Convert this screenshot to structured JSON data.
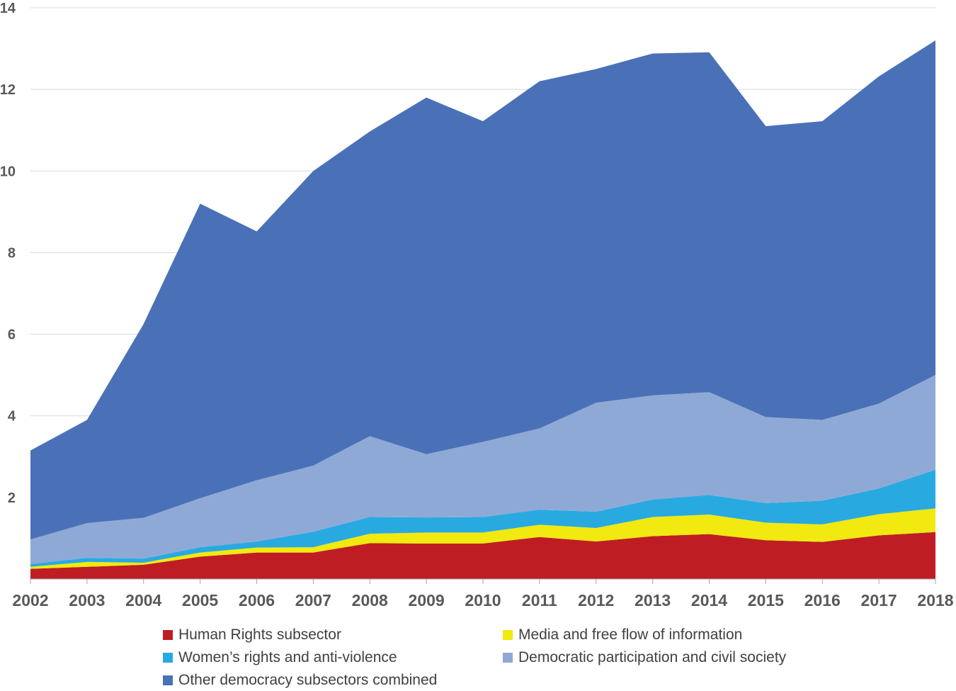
{
  "chart_data": {
    "type": "area",
    "stacked": true,
    "categories": [
      "2002",
      "2003",
      "2004",
      "2005",
      "2006",
      "2007",
      "2008",
      "2009",
      "2010",
      "2011",
      "2012",
      "2013",
      "2014",
      "2015",
      "2016",
      "2017",
      "2018"
    ],
    "ylim": [
      0,
      14
    ],
    "yticks": [
      "14",
      "12",
      "10",
      "8",
      "6",
      "4",
      "2"
    ],
    "grid": true,
    "legend_position": "bottom",
    "series": [
      {
        "name": "Human Rights subsector",
        "color": "#be1e23",
        "values": [
          0.25,
          0.3,
          0.35,
          0.55,
          0.65,
          0.65,
          0.88,
          0.87,
          0.87,
          1.03,
          0.92,
          1.05,
          1.1,
          0.95,
          0.91,
          1.07,
          1.15
        ]
      },
      {
        "name": "Media and free flow of information",
        "color": "#f1e910",
        "values": [
          0.05,
          0.12,
          0.05,
          0.1,
          0.12,
          0.13,
          0.23,
          0.27,
          0.27,
          0.3,
          0.33,
          0.47,
          0.48,
          0.43,
          0.43,
          0.52,
          0.58
        ]
      },
      {
        "name": "Women’s rights and anti-violence",
        "color": "#28aae1",
        "values": [
          0.07,
          0.1,
          0.1,
          0.13,
          0.15,
          0.38,
          0.41,
          0.37,
          0.38,
          0.37,
          0.4,
          0.43,
          0.48,
          0.48,
          0.58,
          0.63,
          0.95
        ]
      },
      {
        "name": "Democratic participation and civil society",
        "color": "#8fa9d6",
        "values": [
          0.6,
          0.85,
          1.0,
          1.2,
          1.5,
          1.62,
          1.98,
          1.55,
          1.84,
          1.99,
          2.67,
          2.55,
          2.52,
          2.11,
          1.98,
          2.08,
          2.32
        ]
      },
      {
        "name": "Other democracy subsectors combined",
        "color": "#4a71b8",
        "values": [
          2.18,
          2.53,
          4.75,
          7.22,
          6.1,
          7.22,
          7.47,
          8.74,
          7.86,
          8.51,
          8.18,
          8.38,
          8.33,
          7.13,
          7.32,
          8.02,
          8.2
        ]
      }
    ]
  },
  "legend_order": [
    0,
    1,
    2,
    3,
    4
  ]
}
